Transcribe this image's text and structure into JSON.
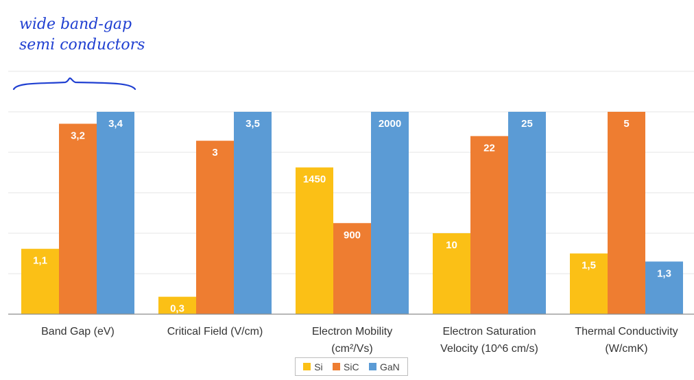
{
  "annotation": {
    "line1": "wide band-gap",
    "line2": "semi conductors"
  },
  "colors": {
    "Si": "#fbc016",
    "SiC": "#ee7d31",
    "GaN": "#5b9bd5",
    "grid": "#e6e6e6",
    "axis": "#8c8c8c",
    "label_text": "#ffffff",
    "category_text": "#333333",
    "annotation_ink": "#1f3fd1"
  },
  "chart_data": {
    "type": "bar",
    "categories": [
      [
        "Band Gap (eV)"
      ],
      [
        "Critical Field (V/cm)"
      ],
      [
        "Electron Mobility",
        "(cm²/Vs)"
      ],
      [
        "Electron Saturation",
        "Velocity (10^6 cm/s)"
      ],
      [
        "Thermal Conductivity",
        "(W/cmK)"
      ]
    ],
    "series": [
      {
        "name": "Si",
        "labels": [
          "1,1",
          "0,3",
          "1450",
          "10",
          "1,5"
        ],
        "relative_heights": [
          0.323,
          0.086,
          0.725,
          0.4,
          0.3
        ]
      },
      {
        "name": "SiC",
        "labels": [
          "3,2",
          "3",
          "900",
          "22",
          "5"
        ],
        "relative_heights": [
          0.941,
          0.857,
          0.45,
          0.88,
          1.0
        ]
      },
      {
        "name": "GaN",
        "labels": [
          "3,4",
          "3,5",
          "2000",
          "25",
          "1,3"
        ],
        "relative_heights": [
          1.0,
          1.0,
          1.0,
          1.0,
          0.26
        ]
      }
    ],
    "relative_heights_note": "heights relative to the tallest bar in each category (each category normalized separately)",
    "grid": true,
    "legend": "bottom-center"
  }
}
